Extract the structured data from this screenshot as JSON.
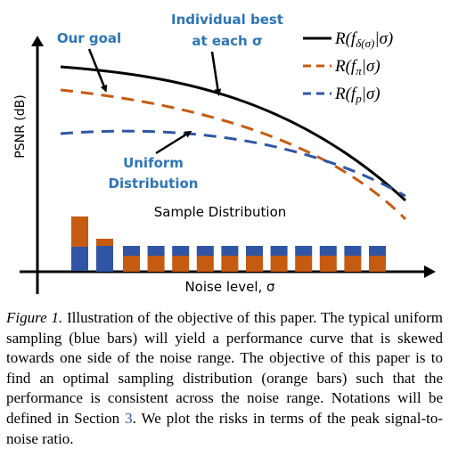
{
  "figure": {
    "y_axis_label": "PSNR (dB)",
    "x_axis_label": "Noise level, σ",
    "annotations": {
      "our_goal": "Our goal",
      "individual_best": [
        "Individual best",
        "at each σ"
      ],
      "uniform": [
        "Uniform",
        "Distribution"
      ],
      "sample_distribution": "Sample Distribution"
    },
    "legend": [
      {
        "pre": "R(f",
        "sub": "δ(σ)",
        "post": "|σ)"
      },
      {
        "pre": "R(f",
        "sub": "π",
        "post": "|σ)"
      },
      {
        "pre": "R(f",
        "sub": "p",
        "post": "|σ)"
      }
    ]
  },
  "caption": {
    "label": "Figure 1.",
    "text_before": " Illustration of the objective of this paper. The typical uniform sampling (blue bars) will yield a performance curve that is skewed towards one side of the noise range. The objective of this paper is to find an optimal sampling distribution (orange bars) such that the performance is consistent across the noise range. Notations will be defined in Section ",
    "ref": "3",
    "text_after": ". We plot the risks in terms of the peak signal-to-noise ratio."
  }
}
